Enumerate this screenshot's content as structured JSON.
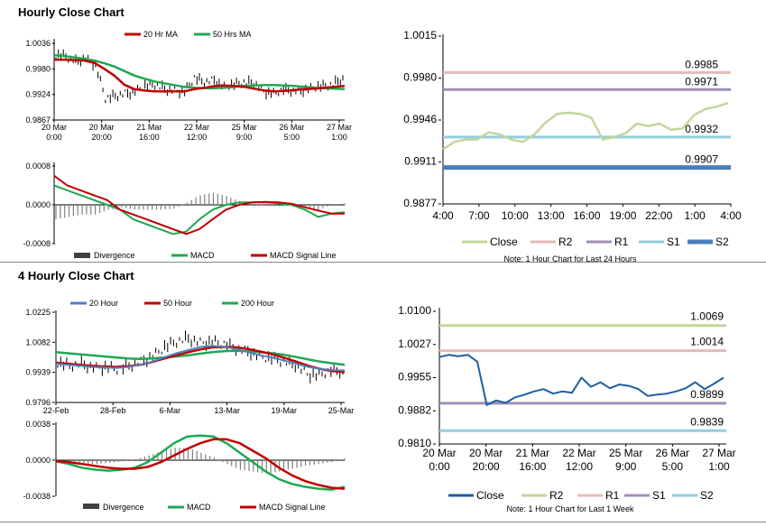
{
  "sections": {
    "hourly_title": "Hourly Close Chart",
    "four_hourly_title": "4 Hourly Close Chart"
  },
  "colors": {
    "ma20": "#c00000",
    "ma50": "#1fa850",
    "price": "#000000",
    "divergence": "#808080",
    "macd": "#1fa850",
    "signal": "#c00000",
    "close_green": "#c3d69b",
    "r2": "#e6b9b8",
    "r1": "#a08fb8",
    "s1": "#93cddd",
    "s2": "#4a7ebb",
    "r2_week": "#c3d69b",
    "r1_week": "#e6b9b8",
    "s1_week": "#a08fb8",
    "s2_week": "#93cddd",
    "close_week": "#1f5f9f",
    "ma20h": "#4f81bd",
    "ma200h": "#1fa850"
  },
  "chart_data": [
    {
      "id": "hourly_price",
      "type": "line",
      "legend": [
        "20 Hr MA",
        "50 Hrs MA"
      ],
      "y_ticks": [
        "1.0036",
        "0.9980",
        "0.9924",
        "0.9867"
      ],
      "ylim": [
        0.9867,
        1.0036
      ],
      "x_ticks": [
        [
          "20 Mar",
          "0:00"
        ],
        [
          "20 Mar",
          "20:00"
        ],
        [
          "21 Mar",
          "16:00"
        ],
        [
          "22 Mar",
          "12:00"
        ],
        [
          "25 Mar",
          "9:00"
        ],
        [
          "26 Mar",
          "5:00"
        ],
        [
          "27 Mar",
          "1:00"
        ]
      ],
      "ma20": [
        1.0,
        1.0,
        0.9999,
        0.9998,
        0.9993,
        0.998,
        0.9965,
        0.9945,
        0.9935,
        0.9932,
        0.993,
        0.993,
        0.993,
        0.993,
        0.9935,
        0.9938,
        0.9942,
        0.9943,
        0.9942,
        0.994,
        0.9936,
        0.9932,
        0.993,
        0.9931,
        0.9933,
        0.9935,
        0.9936,
        0.9938,
        0.994,
        0.9942
      ],
      "ma50": [
        1.001,
        1.0008,
        1.0005,
        1.0002,
        0.9998,
        0.9992,
        0.9985,
        0.9975,
        0.9965,
        0.9958,
        0.9952,
        0.9948,
        0.9944,
        0.994,
        0.9938,
        0.9937,
        0.9937,
        0.9938,
        0.994,
        0.9942,
        0.9943,
        0.9944,
        0.9944,
        0.9943,
        0.9942,
        0.994,
        0.9938,
        0.9937,
        0.9936,
        0.9935
      ],
      "close": [
        1.001,
        1.0008,
        0.9995,
        1.0004,
        0.9988,
        0.9915,
        0.992,
        0.9925,
        0.993,
        0.9942,
        0.9945,
        0.9935,
        0.9932,
        0.993,
        0.996,
        0.995,
        0.9955,
        0.994,
        0.9945,
        0.995,
        0.9948,
        0.993,
        0.9925,
        0.9935,
        0.993,
        0.9933,
        0.9938,
        0.9942,
        0.9945,
        0.996
      ]
    },
    {
      "id": "hourly_macd",
      "type": "line",
      "legend": [
        "Divergence",
        "MACD",
        "MACD Signal Line"
      ],
      "y_ticks": [
        "0.0008",
        "0.0000",
        "-0.0008"
      ],
      "ylim": [
        -0.0008,
        0.0008
      ],
      "macd": [
        0.0004,
        0.0003,
        0.0002,
        0.0001,
        0.0,
        -0.0001,
        -0.0003,
        -0.0004,
        -0.0005,
        -0.0006,
        -0.00055,
        -0.0003,
        -0.0001,
        0.0,
        5e-05,
        5e-05,
        5e-05,
        3e-05,
        0.0,
        -0.0001,
        -0.00025,
        -0.00018,
        -0.00015
      ],
      "signal": [
        0.0006,
        0.0004,
        0.0003,
        0.0002,
        0.0001,
        -0.0001,
        -0.0002,
        -0.0003,
        -0.0004,
        -0.0005,
        -0.0006,
        -0.0005,
        -0.0003,
        -0.0001,
        0.0,
        5e-05,
        6e-05,
        5e-05,
        2e-05,
        -5e-05,
        -0.00012,
        -0.00018,
        -0.00018
      ],
      "divergence": [
        -0.0003,
        -0.00025,
        -0.0002,
        -0.0002,
        -0.0001,
        -5e-05,
        -0.0001,
        -0.0001,
        -0.0001,
        -8e-05,
        5e-05,
        0.0002,
        0.00025,
        0.00018,
        8e-05,
        2e-05,
        -2e-05,
        -3e-05,
        -3e-05,
        -5e-05,
        -0.0001,
        0.0,
        3e-05
      ]
    },
    {
      "id": "hourly_levels",
      "type": "line",
      "y_ticks": [
        "1.0015",
        "0.9980",
        "0.9946",
        "0.9911",
        "0.9877"
      ],
      "ylim": [
        0.9877,
        1.0015
      ],
      "x_ticks": [
        "4:00",
        "7:00",
        "10:00",
        "13:00",
        "16:00",
        "19:00",
        "22:00",
        "1:00",
        "4:00"
      ],
      "close": [
        0.9922,
        0.9928,
        0.993,
        0.993,
        0.9936,
        0.9934,
        0.993,
        0.9928,
        0.9934,
        0.9944,
        0.9951,
        0.9952,
        0.9951,
        0.9948,
        0.993,
        0.9932,
        0.9935,
        0.9943,
        0.9941,
        0.9943,
        0.9938,
        0.9939,
        0.995,
        0.9955,
        0.9957,
        0.996
      ],
      "levels": {
        "R2": 0.9985,
        "R1": 0.9971,
        "S1": 0.9932,
        "S2": 0.9907
      },
      "level_labels": {
        "R2": "0.9985",
        "R1": "0.9971",
        "S1": "0.9932",
        "S2": "0.9907"
      },
      "legend": [
        "Close",
        "R2",
        "R1",
        "S1",
        "S2"
      ],
      "note": "Note: 1 Hour Chart for Last 24 Hours"
    },
    {
      "id": "four_hourly_price",
      "type": "line",
      "legend": [
        "20 Hour",
        "50 Hour",
        "200 Hour"
      ],
      "y_ticks": [
        "1.0225",
        "1.0082",
        "0.9939",
        "0.9796"
      ],
      "ylim": [
        0.9796,
        1.0225
      ],
      "x_ticks": [
        "22-Feb",
        "28-Feb",
        "6-Mar",
        "13-Mar",
        "19-Mar",
        "25-Mar"
      ],
      "ma20": [
        0.998,
        0.9975,
        0.997,
        0.9965,
        0.9962,
        0.996,
        0.9965,
        0.9975,
        0.999,
        1.001,
        1.003,
        1.0045,
        1.006,
        1.0065,
        1.006,
        1.005,
        1.0035,
        1.002,
        1.001,
        0.9995,
        0.998,
        0.9965,
        0.9955,
        0.995,
        0.9948
      ],
      "ma50": [
        0.9985,
        0.998,
        0.9975,
        0.997,
        0.9967,
        0.9965,
        0.9968,
        0.9975,
        0.9988,
        1.0005,
        1.002,
        1.0035,
        1.0048,
        1.0058,
        1.006,
        1.0058,
        1.005,
        1.0038,
        1.0025,
        1.0008,
        0.999,
        0.997,
        0.9955,
        0.9945,
        0.994
      ],
      "ma200": [
        1.0035,
        1.003,
        1.0025,
        1.002,
        1.0015,
        1.001,
        1.0005,
        1.0003,
        1.0005,
        1.001,
        1.0015,
        1.002,
        1.0028,
        1.0035,
        1.004,
        1.0042,
        1.004,
        1.0035,
        1.003,
        1.0022,
        1.0012,
        1.0,
        0.999,
        0.9982,
        0.9975
      ],
      "close": [
        0.9985,
        0.997,
        0.998,
        0.996,
        0.9965,
        0.9955,
        0.997,
        0.999,
        1.0015,
        1.006,
        1.0085,
        1.01,
        1.008,
        1.0085,
        1.0075,
        1.005,
        1.004,
        1.0015,
        1.0005,
        0.999,
        0.9975,
        0.993,
        0.9925,
        0.995,
        0.994
      ]
    },
    {
      "id": "four_hourly_macd",
      "type": "line",
      "legend": [
        "Divergence",
        "MACD",
        "MACD Signal Line"
      ],
      "y_ticks": [
        "0.0038",
        "0.0000",
        "-0.0038"
      ],
      "ylim": [
        -0.0038,
        0.0038
      ],
      "macd": [
        -0.0001,
        -0.0004,
        -0.0008,
        -0.001,
        -0.0011,
        -0.001,
        -0.0008,
        -0.0002,
        0.0008,
        0.0018,
        0.0025,
        0.0026,
        0.0025,
        0.0018,
        0.0008,
        -0.0002,
        -0.0012,
        -0.002,
        -0.0025,
        -0.0028,
        -0.003,
        -0.0031,
        -0.0028
      ],
      "signal": [
        -0.0001,
        -0.0002,
        -0.0004,
        -0.0006,
        -0.0008,
        -0.0009,
        -0.0009,
        -0.0007,
        -0.0002,
        0.0005,
        0.0012,
        0.0018,
        0.0022,
        0.0022,
        0.0018,
        0.001,
        0.0002,
        -0.0008,
        -0.0016,
        -0.0022,
        -0.0026,
        -0.0029,
        -0.003
      ],
      "divergence": [
        0.0,
        -0.0002,
        -0.0004,
        -0.0004,
        -0.0003,
        -0.0001,
        0.0001,
        0.0005,
        0.001,
        0.0013,
        0.0013,
        0.0008,
        0.0003,
        -0.0004,
        -0.001,
        -0.0012,
        -0.0014,
        -0.0012,
        -0.0009,
        -0.0006,
        -0.0004,
        -0.0002,
        0.0002
      ]
    },
    {
      "id": "four_hourly_levels",
      "type": "line",
      "y_ticks": [
        "1.0100",
        "1.0027",
        "0.9955",
        "0.9882",
        "0.9810"
      ],
      "ylim": [
        0.981,
        1.01
      ],
      "x_ticks": [
        [
          "20 Mar",
          "0:00"
        ],
        [
          "20 Mar",
          "20:00"
        ],
        [
          "21 Mar",
          "16:00"
        ],
        [
          "22 Mar",
          "12:00"
        ],
        [
          "25 Mar",
          "9:00"
        ],
        [
          "26 Mar",
          "5:00"
        ],
        [
          "27 Mar",
          "1:00"
        ]
      ],
      "close": [
        1.0,
        1.0005,
        1.0002,
        1.0005,
        0.999,
        0.9895,
        0.9905,
        0.99,
        0.9912,
        0.9918,
        0.9925,
        0.993,
        0.992,
        0.9925,
        0.9922,
        0.9955,
        0.9935,
        0.9945,
        0.9932,
        0.994,
        0.9937,
        0.993,
        0.9915,
        0.9918,
        0.992,
        0.9925,
        0.9932,
        0.9945,
        0.993,
        0.9942,
        0.9955
      ],
      "levels": {
        "R2": 1.0069,
        "R1": 1.0014,
        "S1": 0.9899,
        "S2": 0.9839
      },
      "level_labels": {
        "R2": "1.0069",
        "R1": "1.0014",
        "S1": "0.9899",
        "S2": "0.9839"
      },
      "legend": [
        "Close",
        "R2",
        "R1",
        "S1",
        "S2"
      ],
      "note": "Note: 1 Hour Chart for Last 1 Week"
    }
  ]
}
